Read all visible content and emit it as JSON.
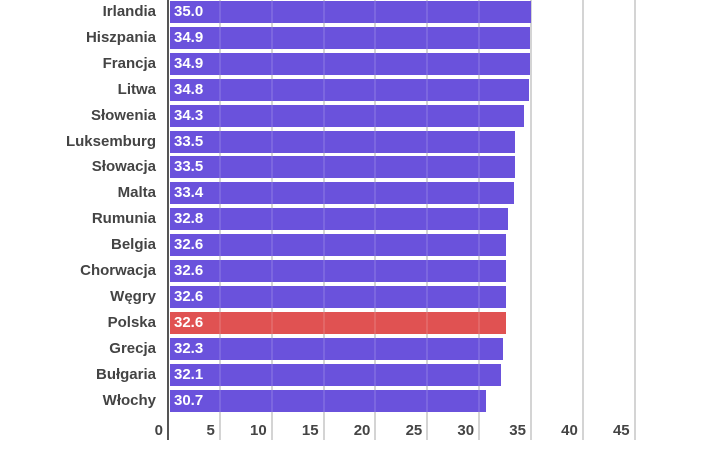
{
  "chart_data": {
    "type": "bar",
    "orientation": "horizontal",
    "title": "",
    "xlabel": "",
    "ylabel": "",
    "categories": [
      "Irlandia",
      "Hiszpania",
      "Francja",
      "Litwa",
      "Słowenia",
      "Luksemburg",
      "Słowacja",
      "Malta",
      "Rumunia",
      "Belgia",
      "Chorwacja",
      "Węgry",
      "Polska",
      "Grecja",
      "Bułgaria",
      "Włochy"
    ],
    "values": [
      35.0,
      34.9,
      34.9,
      34.8,
      34.3,
      33.5,
      33.5,
      33.4,
      32.8,
      32.6,
      32.6,
      32.6,
      32.6,
      32.3,
      32.1,
      30.7
    ],
    "value_labels": [
      "35.0",
      "34.9",
      "34.9",
      "34.8",
      "34.3",
      "33.5",
      "33.5",
      "33.4",
      "32.8",
      "32.6",
      "32.6",
      "32.6",
      "32.6",
      "32.3",
      "32.1",
      "30.7"
    ],
    "highlight": "Polska",
    "xlim": [
      0,
      45
    ],
    "xticks": [
      0,
      5,
      10,
      15,
      20,
      25,
      30,
      35,
      40,
      45
    ],
    "xtick_labels": [
      "0",
      "5",
      "10",
      "15",
      "20",
      "25",
      "30",
      "35",
      "40",
      "45"
    ],
    "grid": true,
    "legend": null
  },
  "colors": {
    "bar": "#6a52dc",
    "highlight": "#e05252",
    "grid": "#d4d4d4",
    "axis": "#555555",
    "text": "#444444"
  }
}
